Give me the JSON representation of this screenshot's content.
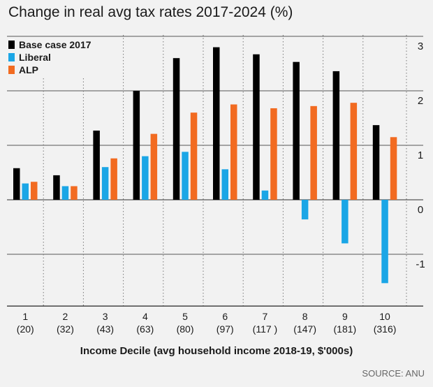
{
  "chart_data": {
    "type": "bar",
    "title": "Change in real avg tax rates 2017-2024 (%)",
    "xlabel": "Income Decile (avg household income 2018-19, $'000s)",
    "ylabel": "",
    "source": "SOURCE: ANU",
    "categories": [
      "1",
      "2",
      "3",
      "4",
      "5",
      "6",
      "7",
      "8",
      "9",
      "10"
    ],
    "category_sublabels": [
      "(20)",
      "(32)",
      "(43)",
      "(63)",
      "(80)",
      "(97)",
      "(117 )",
      "(147)",
      "(181)",
      "(316)"
    ],
    "series": [
      {
        "name": "Base case 2017",
        "color": "#000000",
        "values": [
          0.58,
          0.45,
          1.27,
          2.0,
          2.6,
          2.8,
          2.67,
          2.53,
          2.36,
          1.37
        ]
      },
      {
        "name": "Liberal",
        "color": "#1ba6e6",
        "values": [
          0.3,
          0.25,
          0.6,
          0.8,
          0.88,
          0.56,
          0.17,
          -0.36,
          -0.8,
          -1.53
        ]
      },
      {
        "name": "ALP",
        "color": "#f26b21",
        "values": [
          0.33,
          0.25,
          0.76,
          1.21,
          1.6,
          1.75,
          1.68,
          1.72,
          1.78,
          1.15
        ]
      }
    ],
    "ylim": [
      -1.95,
      3.0
    ],
    "yticks": [
      3,
      2,
      1,
      0,
      -1
    ],
    "ytick_labels": [
      "3",
      "2",
      "1",
      "0",
      "-1"
    ],
    "grid": true,
    "legend_position": "top-left"
  }
}
